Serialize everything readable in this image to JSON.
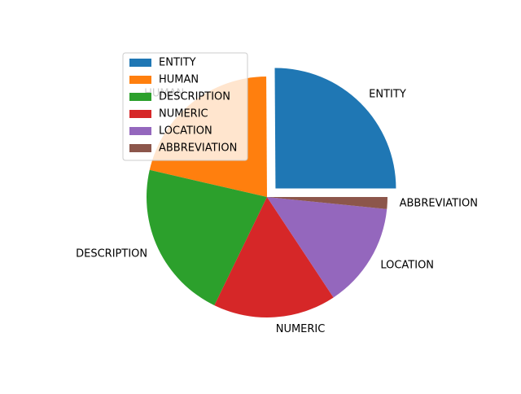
{
  "chart_data": {
    "type": "pie",
    "title": "",
    "labels": [
      "ENTITY",
      "HUMAN",
      "DESCRIPTION",
      "NUMERIC",
      "LOCATION",
      "ABBREVIATION"
    ],
    "values": [
      25.1,
      21.3,
      21.4,
      16.5,
      14.1,
      1.6
    ],
    "explode": [
      0.1,
      0,
      0,
      0,
      0,
      0
    ],
    "colors": [
      "#1f77b4",
      "#ff7f0e",
      "#2ca02c",
      "#d62728",
      "#9467bd",
      "#8c564b"
    ],
    "start_angle_deg": 0,
    "direction": "counterclockwise",
    "legend": {
      "location": "upper-left",
      "entries": [
        "ENTITY",
        "HUMAN",
        "DESCRIPTION",
        "NUMERIC",
        "LOCATION",
        "ABBREVIATION"
      ]
    }
  }
}
